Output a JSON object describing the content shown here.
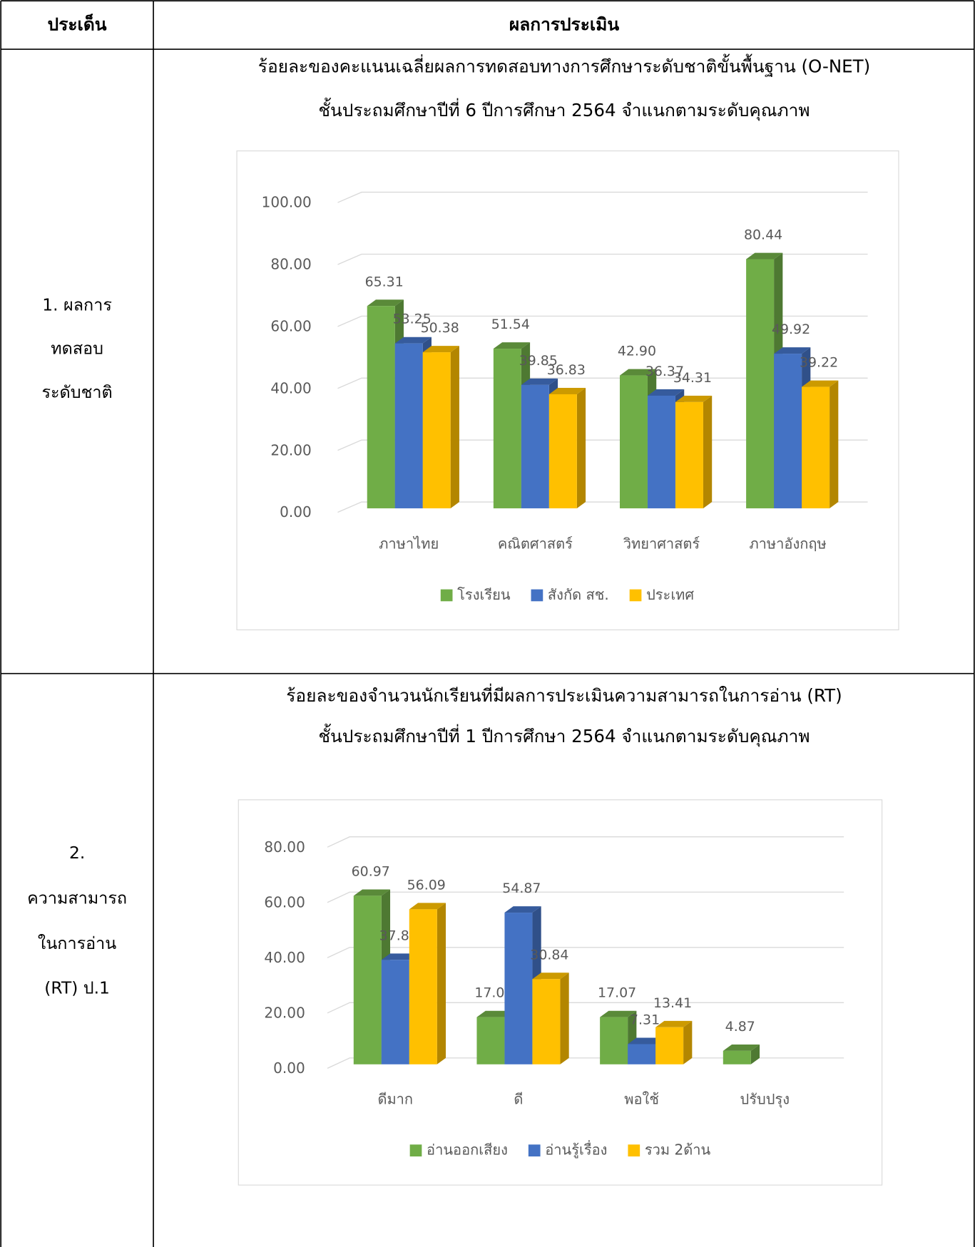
{
  "header": {
    "col1": "ประเด็น",
    "col2": "ผลการประเมิน"
  },
  "table": {
    "rows": [
      {
        "label": [
          "1. ผลการ",
          "ทดสอบ",
          "ระดับชาติ"
        ],
        "title": [
          "ร้อยละของคะแนนเฉลี่ยผลการทดสอบทางการศึกษาระดับชาติขั้นพื้นฐาน (O-NET)",
          "ชั้นประถมศึกษาปีที่ 6 ปีการศึกษา 2564 จำแนกตามระดับคุณภาพ"
        ],
        "chart": {
          "type": "bar",
          "categories": [
            "ภาษาไทย",
            "คณิตศาสตร์",
            "วิทยาศาสตร์",
            "ภาษาอังกฤษ"
          ],
          "series": [
            {
              "name": "โรงเรียน",
              "color": "#70ad47",
              "values": [
                65.31,
                51.54,
                42.9,
                80.44
              ],
              "value_labels": [
                "65.31",
                "51.54",
                "42.90",
                "80.44"
              ]
            },
            {
              "name": "สังกัด สช.",
              "color": "#4472c4",
              "values": [
                53.25,
                39.85,
                36.37,
                49.92
              ],
              "value_labels": [
                "53.25",
                "39.85",
                "36.37",
                "49.92"
              ]
            },
            {
              "name": "ประเทศ",
              "color": "#ffc000",
              "values": [
                50.38,
                36.83,
                34.31,
                39.22
              ],
              "value_labels": [
                "50.38",
                "36.83",
                "34.31",
                "39.22"
              ]
            }
          ],
          "ylim": [
            0,
            100
          ],
          "yticks": [
            {
              "value": 0,
              "label": "0.00"
            },
            {
              "value": 20,
              "label": "20.00"
            },
            {
              "value": 40,
              "label": "40.00"
            },
            {
              "value": 60,
              "label": "60.00"
            },
            {
              "value": 80,
              "label": "80.00"
            },
            {
              "value": 100,
              "label": "100.00"
            }
          ],
          "grid": true,
          "legend": "bottom"
        }
      },
      {
        "label": [
          "2.",
          "ความสามารถ",
          "ในการอ่าน",
          "(RT) ป.1"
        ],
        "title": [
          "ร้อยละของจำนวนนักเรียนที่มีผลการประเมินความสามารถในการอ่าน (RT)",
          "ชั้นประถมศึกษาปีที่ 1 ปีการศึกษา 2564 จำแนกตามระดับคุณภาพ"
        ],
        "chart": {
          "type": "bar",
          "categories": [
            "ดีมาก",
            "ดี",
            "พอใช้",
            "ปรับปรุง"
          ],
          "series": [
            {
              "name": "อ่านออกเสียง",
              "color": "#70ad47",
              "values": [
                60.97,
                17.07,
                17.07,
                4.87
              ],
              "value_labels": [
                "60.97",
                "17.07",
                "17.07",
                "4.87"
              ]
            },
            {
              "name": "อ่านรู้เรื่อง",
              "color": "#4472c4",
              "values": [
                37.8,
                54.87,
                7.31,
                null
              ],
              "value_labels": [
                "37.80",
                "54.87",
                "7.31",
                null
              ]
            },
            {
              "name": "รวม 2ด้าน",
              "color": "#ffc000",
              "values": [
                56.09,
                30.84,
                13.41,
                null
              ],
              "value_labels": [
                "56.09",
                "30.84",
                "13.41",
                null
              ]
            }
          ],
          "ylim": [
            0,
            80
          ],
          "yticks": [
            {
              "value": 0,
              "label": "0.00"
            },
            {
              "value": 20,
              "label": "20.00"
            },
            {
              "value": 40,
              "label": "40.00"
            },
            {
              "value": 60,
              "label": "60.00"
            },
            {
              "value": 80,
              "label": "80.00"
            }
          ],
          "grid": true,
          "legend": "bottom"
        }
      }
    ]
  }
}
